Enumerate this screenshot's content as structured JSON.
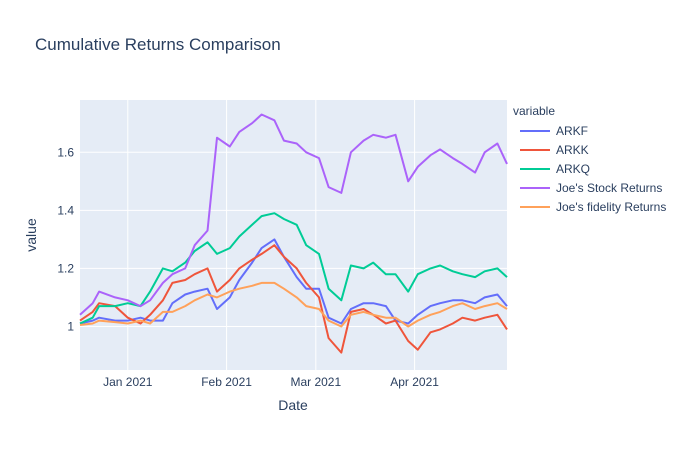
{
  "chart_data": {
    "type": "line",
    "title": "Cumulative Returns Comparison",
    "xlabel": "Date",
    "ylabel": "value",
    "x_tick_labels": [
      "Jan 2021",
      "Feb 2021",
      "Mar 2021",
      "Apr 2021"
    ],
    "y_tick_labels": [
      "1",
      "1.2",
      "1.4",
      "1.6"
    ],
    "ylim": [
      0.85,
      1.78
    ],
    "xlim": [
      "2020-12-17",
      "2021-04-30"
    ],
    "grid": true,
    "legend": {
      "title": "variable",
      "placement": "right"
    },
    "series": [
      {
        "name": "ARKF",
        "color": "#636efa",
        "points": [
          [
            "2020-12-17",
            1.01
          ],
          [
            "2020-12-21",
            1.02
          ],
          [
            "2020-12-23",
            1.03
          ],
          [
            "2020-12-28",
            1.02
          ],
          [
            "2021-01-01",
            1.02
          ],
          [
            "2021-01-05",
            1.03
          ],
          [
            "2021-01-08",
            1.02
          ],
          [
            "2021-01-12",
            1.02
          ],
          [
            "2021-01-15",
            1.08
          ],
          [
            "2021-01-19",
            1.11
          ],
          [
            "2021-01-22",
            1.12
          ],
          [
            "2021-01-26",
            1.13
          ],
          [
            "2021-01-29",
            1.06
          ],
          [
            "2021-02-02",
            1.1
          ],
          [
            "2021-02-05",
            1.16
          ],
          [
            "2021-02-09",
            1.22
          ],
          [
            "2021-02-12",
            1.27
          ],
          [
            "2021-02-16",
            1.3
          ],
          [
            "2021-02-19",
            1.24
          ],
          [
            "2021-02-23",
            1.17
          ],
          [
            "2021-02-26",
            1.13
          ],
          [
            "2021-03-02",
            1.13
          ],
          [
            "2021-03-05",
            1.03
          ],
          [
            "2021-03-09",
            1.01
          ],
          [
            "2021-03-12",
            1.06
          ],
          [
            "2021-03-16",
            1.08
          ],
          [
            "2021-03-19",
            1.08
          ],
          [
            "2021-03-23",
            1.07
          ],
          [
            "2021-03-26",
            1.02
          ],
          [
            "2021-03-30",
            1.01
          ],
          [
            "2021-04-02",
            1.04
          ],
          [
            "2021-04-06",
            1.07
          ],
          [
            "2021-04-09",
            1.08
          ],
          [
            "2021-04-13",
            1.09
          ],
          [
            "2021-04-16",
            1.09
          ],
          [
            "2021-04-20",
            1.08
          ],
          [
            "2021-04-23",
            1.1
          ],
          [
            "2021-04-27",
            1.11
          ],
          [
            "2021-04-30",
            1.07
          ]
        ]
      },
      {
        "name": "ARKK",
        "color": "#ef553b",
        "points": [
          [
            "2020-12-17",
            1.02
          ],
          [
            "2020-12-21",
            1.05
          ],
          [
            "2020-12-23",
            1.08
          ],
          [
            "2020-12-28",
            1.07
          ],
          [
            "2021-01-01",
            1.03
          ],
          [
            "2021-01-05",
            1.01
          ],
          [
            "2021-01-08",
            1.04
          ],
          [
            "2021-01-12",
            1.09
          ],
          [
            "2021-01-15",
            1.15
          ],
          [
            "2021-01-19",
            1.16
          ],
          [
            "2021-01-22",
            1.18
          ],
          [
            "2021-01-26",
            1.2
          ],
          [
            "2021-01-29",
            1.12
          ],
          [
            "2021-02-02",
            1.16
          ],
          [
            "2021-02-05",
            1.2
          ],
          [
            "2021-02-09",
            1.23
          ],
          [
            "2021-02-12",
            1.25
          ],
          [
            "2021-02-16",
            1.28
          ],
          [
            "2021-02-19",
            1.24
          ],
          [
            "2021-02-23",
            1.2
          ],
          [
            "2021-02-26",
            1.15
          ],
          [
            "2021-03-02",
            1.1
          ],
          [
            "2021-03-05",
            0.96
          ],
          [
            "2021-03-09",
            0.91
          ],
          [
            "2021-03-12",
            1.05
          ],
          [
            "2021-03-16",
            1.06
          ],
          [
            "2021-03-19",
            1.04
          ],
          [
            "2021-03-23",
            1.01
          ],
          [
            "2021-03-26",
            1.02
          ],
          [
            "2021-03-30",
            0.95
          ],
          [
            "2021-04-02",
            0.92
          ],
          [
            "2021-04-06",
            0.98
          ],
          [
            "2021-04-09",
            0.99
          ],
          [
            "2021-04-13",
            1.01
          ],
          [
            "2021-04-16",
            1.03
          ],
          [
            "2021-04-20",
            1.02
          ],
          [
            "2021-04-23",
            1.03
          ],
          [
            "2021-04-27",
            1.04
          ],
          [
            "2021-04-30",
            0.99
          ]
        ]
      },
      {
        "name": "ARKQ",
        "color": "#00cc96",
        "points": [
          [
            "2020-12-17",
            1.01
          ],
          [
            "2020-12-21",
            1.03
          ],
          [
            "2020-12-23",
            1.07
          ],
          [
            "2020-12-28",
            1.07
          ],
          [
            "2021-01-01",
            1.08
          ],
          [
            "2021-01-05",
            1.07
          ],
          [
            "2021-01-08",
            1.12
          ],
          [
            "2021-01-12",
            1.2
          ],
          [
            "2021-01-15",
            1.19
          ],
          [
            "2021-01-19",
            1.22
          ],
          [
            "2021-01-22",
            1.26
          ],
          [
            "2021-01-26",
            1.29
          ],
          [
            "2021-01-29",
            1.25
          ],
          [
            "2021-02-02",
            1.27
          ],
          [
            "2021-02-05",
            1.31
          ],
          [
            "2021-02-09",
            1.35
          ],
          [
            "2021-02-12",
            1.38
          ],
          [
            "2021-02-16",
            1.39
          ],
          [
            "2021-02-19",
            1.37
          ],
          [
            "2021-02-23",
            1.35
          ],
          [
            "2021-02-26",
            1.28
          ],
          [
            "2021-03-02",
            1.25
          ],
          [
            "2021-03-05",
            1.13
          ],
          [
            "2021-03-09",
            1.09
          ],
          [
            "2021-03-12",
            1.21
          ],
          [
            "2021-03-16",
            1.2
          ],
          [
            "2021-03-19",
            1.22
          ],
          [
            "2021-03-23",
            1.18
          ],
          [
            "2021-03-26",
            1.18
          ],
          [
            "2021-03-30",
            1.12
          ],
          [
            "2021-04-02",
            1.18
          ],
          [
            "2021-04-06",
            1.2
          ],
          [
            "2021-04-09",
            1.21
          ],
          [
            "2021-04-13",
            1.19
          ],
          [
            "2021-04-16",
            1.18
          ],
          [
            "2021-04-20",
            1.17
          ],
          [
            "2021-04-23",
            1.19
          ],
          [
            "2021-04-27",
            1.2
          ],
          [
            "2021-04-30",
            1.17
          ]
        ]
      },
      {
        "name": "Joe's  Stock Returns",
        "color": "#ab63fa",
        "points": [
          [
            "2020-12-17",
            1.04
          ],
          [
            "2020-12-21",
            1.08
          ],
          [
            "2020-12-23",
            1.12
          ],
          [
            "2020-12-28",
            1.1
          ],
          [
            "2021-01-01",
            1.09
          ],
          [
            "2021-01-05",
            1.07
          ],
          [
            "2021-01-08",
            1.09
          ],
          [
            "2021-01-12",
            1.15
          ],
          [
            "2021-01-15",
            1.18
          ],
          [
            "2021-01-19",
            1.2
          ],
          [
            "2021-01-22",
            1.28
          ],
          [
            "2021-01-26",
            1.33
          ],
          [
            "2021-01-29",
            1.65
          ],
          [
            "2021-02-02",
            1.62
          ],
          [
            "2021-02-05",
            1.67
          ],
          [
            "2021-02-09",
            1.7
          ],
          [
            "2021-02-12",
            1.73
          ],
          [
            "2021-02-16",
            1.71
          ],
          [
            "2021-02-19",
            1.64
          ],
          [
            "2021-02-23",
            1.63
          ],
          [
            "2021-02-26",
            1.6
          ],
          [
            "2021-03-02",
            1.58
          ],
          [
            "2021-03-05",
            1.48
          ],
          [
            "2021-03-09",
            1.46
          ],
          [
            "2021-03-12",
            1.6
          ],
          [
            "2021-03-16",
            1.64
          ],
          [
            "2021-03-19",
            1.66
          ],
          [
            "2021-03-23",
            1.65
          ],
          [
            "2021-03-26",
            1.66
          ],
          [
            "2021-03-30",
            1.5
          ],
          [
            "2021-04-02",
            1.55
          ],
          [
            "2021-04-06",
            1.59
          ],
          [
            "2021-04-09",
            1.61
          ],
          [
            "2021-04-13",
            1.58
          ],
          [
            "2021-04-16",
            1.56
          ],
          [
            "2021-04-20",
            1.53
          ],
          [
            "2021-04-23",
            1.6
          ],
          [
            "2021-04-27",
            1.63
          ],
          [
            "2021-04-30",
            1.56
          ]
        ]
      },
      {
        "name": "Joe's fidelity Returns",
        "color": "#ffa15a",
        "points": [
          [
            "2020-12-17",
            1.005
          ],
          [
            "2020-12-21",
            1.01
          ],
          [
            "2020-12-23",
            1.02
          ],
          [
            "2020-12-28",
            1.015
          ],
          [
            "2021-01-01",
            1.01
          ],
          [
            "2021-01-05",
            1.02
          ],
          [
            "2021-01-08",
            1.01
          ],
          [
            "2021-01-12",
            1.05
          ],
          [
            "2021-01-15",
            1.05
          ],
          [
            "2021-01-19",
            1.07
          ],
          [
            "2021-01-22",
            1.09
          ],
          [
            "2021-01-26",
            1.11
          ],
          [
            "2021-01-29",
            1.1
          ],
          [
            "2021-02-02",
            1.12
          ],
          [
            "2021-02-05",
            1.13
          ],
          [
            "2021-02-09",
            1.14
          ],
          [
            "2021-02-12",
            1.15
          ],
          [
            "2021-02-16",
            1.15
          ],
          [
            "2021-02-19",
            1.13
          ],
          [
            "2021-02-23",
            1.1
          ],
          [
            "2021-02-26",
            1.07
          ],
          [
            "2021-03-02",
            1.06
          ],
          [
            "2021-03-05",
            1.02
          ],
          [
            "2021-03-09",
            1.0
          ],
          [
            "2021-03-12",
            1.04
          ],
          [
            "2021-03-16",
            1.05
          ],
          [
            "2021-03-19",
            1.04
          ],
          [
            "2021-03-23",
            1.03
          ],
          [
            "2021-03-26",
            1.03
          ],
          [
            "2021-03-30",
            1.0
          ],
          [
            "2021-04-02",
            1.02
          ],
          [
            "2021-04-06",
            1.04
          ],
          [
            "2021-04-09",
            1.05
          ],
          [
            "2021-04-13",
            1.07
          ],
          [
            "2021-04-16",
            1.08
          ],
          [
            "2021-04-20",
            1.06
          ],
          [
            "2021-04-23",
            1.07
          ],
          [
            "2021-04-27",
            1.08
          ],
          [
            "2021-04-30",
            1.06
          ]
        ]
      }
    ]
  }
}
